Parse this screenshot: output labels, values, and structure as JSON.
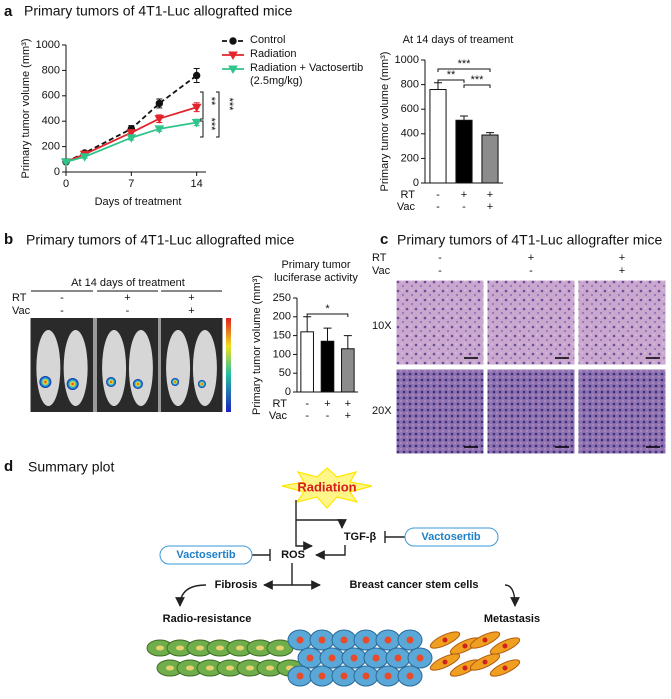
{
  "figure": {
    "panel_labels": [
      "a",
      "b",
      "c",
      "d"
    ],
    "titles": [
      "Primary tumors of 4T1-Luc allografted mice",
      "Primary tumors of 4T1-Luc allografted mice",
      "Primary tumors of 4T1-Luc allografter mice",
      "Summary plot"
    ]
  },
  "chart_data": [
    {
      "type": "line",
      "x": [
        0,
        2,
        7,
        10,
        14
      ],
      "xlim": [
        0,
        15
      ],
      "xticks": [
        0,
        7,
        14
      ],
      "ylim": [
        0,
        1000
      ],
      "yticks": [
        0,
        200,
        400,
        600,
        800,
        1000
      ],
      "x_label": "Days of treatment",
      "y_label": "Primary tumor volume (mm³)",
      "series": [
        {
          "name": "Control",
          "color": "#111111",
          "marker": "circle",
          "dashed": true,
          "values": [
            80,
            150,
            340,
            540,
            760
          ],
          "errors": [
            10,
            15,
            25,
            35,
            55
          ]
        },
        {
          "name": "Radiation",
          "color": "#e3242b",
          "marker": "triangle-down",
          "dashed": false,
          "values": [
            80,
            140,
            310,
            420,
            510
          ],
          "errors": [
            10,
            15,
            20,
            30,
            35
          ]
        },
        {
          "name": "Radiation + Vactosertib (2.5mg/kg)",
          "color": "#2ec48a",
          "marker": "triangle-down",
          "dashed": false,
          "values": [
            80,
            120,
            270,
            340,
            390
          ],
          "errors": [
            10,
            12,
            18,
            20,
            25
          ]
        }
      ],
      "annotations": [
        "**",
        "***",
        "***"
      ]
    },
    {
      "type": "bar",
      "title": "At 14 days of treament",
      "categories": [
        null,
        null,
        null
      ],
      "values": [
        760,
        510,
        390
      ],
      "errors": [
        55,
        35,
        20
      ],
      "colors": [
        "#ffffff",
        "#000000",
        "#8c8c8c"
      ],
      "ylim": [
        0,
        1000
      ],
      "yticks": [
        0,
        200,
        400,
        600,
        800,
        1000
      ],
      "y_label": "Primary tumor volume (mm³)",
      "conditions": {
        "rows": [
          "RT",
          "Vac"
        ],
        "signs": [
          [
            "-",
            "+",
            "+"
          ],
          [
            "-",
            "-",
            "+"
          ]
        ]
      },
      "annotations": [
        "***",
        "**",
        "***"
      ]
    },
    {
      "type": "bar",
      "title": "Primary tumor luciferase activity",
      "categories": [
        null,
        null,
        null
      ],
      "values": [
        160,
        135,
        115
      ],
      "errors": [
        40,
        35,
        35
      ],
      "colors": [
        "#ffffff",
        "#000000",
        "#8c8c8c"
      ],
      "ylim": [
        0,
        250
      ],
      "yticks": [
        0,
        50,
        100,
        150,
        200,
        250
      ],
      "y_label": "Primary tumor volume (mm³)",
      "conditions": {
        "rows": [
          "RT",
          "Vac"
        ],
        "signs": [
          [
            "-",
            "+",
            "+"
          ],
          [
            "-",
            "-",
            "+"
          ]
        ]
      },
      "annotations": [
        "*"
      ]
    }
  ],
  "panel_b_image": {
    "header": "At 14 days of treatment",
    "conditions": {
      "rows": [
        "RT",
        "Vac"
      ],
      "signs": [
        [
          "-",
          "+",
          "+"
        ],
        [
          "-",
          "-",
          "+"
        ]
      ]
    }
  },
  "panel_c": {
    "conditions": {
      "rows": [
        "RT",
        "Vac"
      ],
      "signs": [
        [
          "-",
          "+",
          "+"
        ],
        [
          "-",
          "-",
          "+"
        ]
      ]
    },
    "row_labels": [
      "10X",
      "20X"
    ]
  },
  "diagram": {
    "nodes": [
      "Radiation",
      "TGF-β",
      "Vactosertib",
      "Vactosertib",
      "ROS",
      "Fibrosis",
      "Breast cancer stem cells",
      "Radio-resistance",
      "Metastasis"
    ]
  }
}
